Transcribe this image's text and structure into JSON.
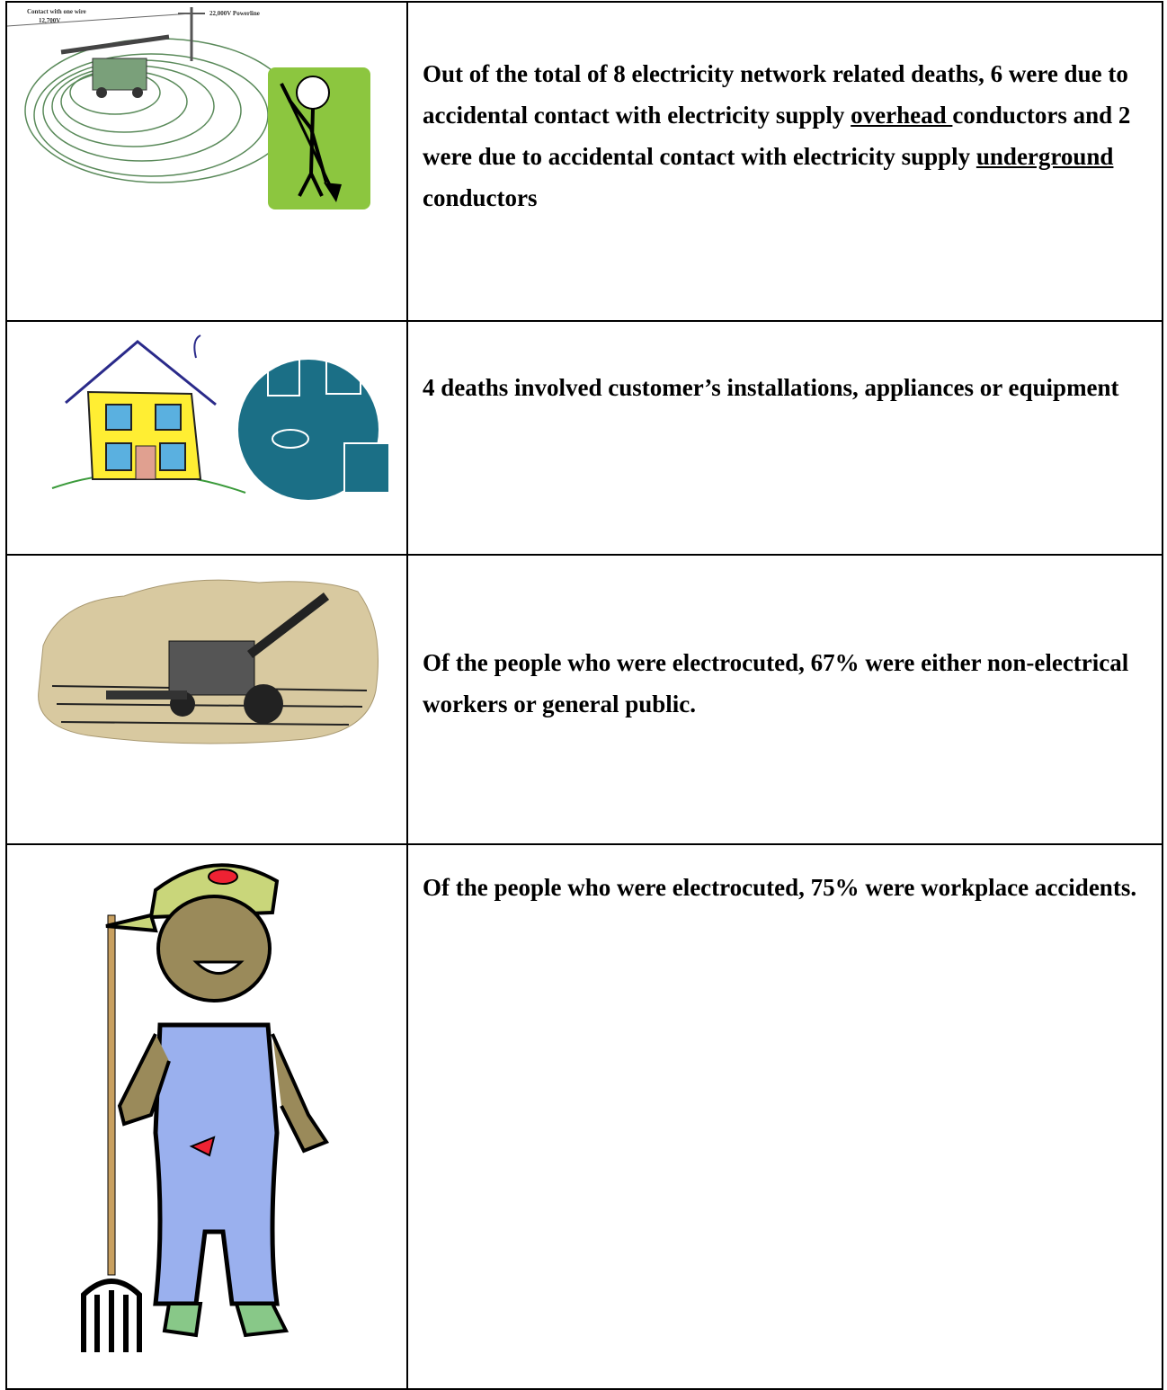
{
  "table": {
    "rows": [
      {
        "text": [
          "Out of the total of 8 electricity network related deaths,  6 were due to  accidental contact with electricity supply ",
          "overhead ",
          "conductors and 2 were due to accidental contact with electricity supply ",
          "underground",
          "  conductors"
        ],
        "image_labels": [
          "Contact with one wire",
          "12,700V",
          "22,000V Powerline"
        ]
      },
      {
        "text": [
          "4 deaths involved customer’s installations, appliances or equipment"
        ]
      },
      {
        "text": [
          "Of the people who were electrocuted,  67% were either non-electrical workers or general public."
        ]
      },
      {
        "text": [
          "Of the people who were electrocuted,  75% were workplace accidents."
        ]
      }
    ]
  }
}
